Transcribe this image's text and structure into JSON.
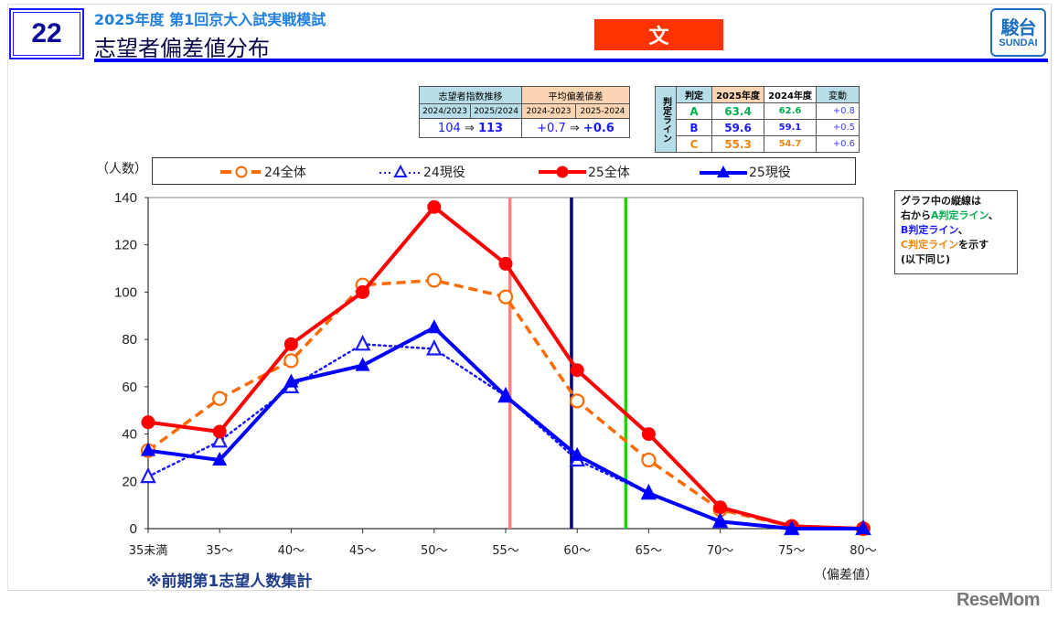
{
  "header": {
    "slide_number": "22",
    "subtitle": "2025年度 第1回京大入試実戦模試",
    "title": "志望者偏差値分布",
    "category_badge": "文",
    "logo": {
      "kanji": "駿台",
      "latin": "SUNDAI"
    }
  },
  "index_table": {
    "group1_header": "志望者指数推移",
    "group2_header": "平均偏差値差",
    "subheaders": [
      "2024/2023",
      "2025/2024",
      "2024-2023",
      "2025-2024"
    ],
    "index_from": "104",
    "index_to": "113",
    "diff_from": "+0.7",
    "diff_to": "+0.6",
    "arrow": "⇒"
  },
  "judgment_table": {
    "side_label": "判定ライン",
    "headers": [
      "判定",
      "2025年度",
      "2024年度",
      "変動"
    ],
    "rows": [
      {
        "grade": "A",
        "y2025": "63.4",
        "y2024": "62.6",
        "change": "+0.8",
        "color": "#00b050"
      },
      {
        "grade": "B",
        "y2025": "59.6",
        "y2024": "59.1",
        "change": "+0.5",
        "color": "#1a1aff"
      },
      {
        "grade": "C",
        "y2025": "55.3",
        "y2024": "54.7",
        "change": "+0.6",
        "color": "#f0860f"
      }
    ]
  },
  "legend": {
    "items": [
      {
        "label": "24全体",
        "color": "#ff6a00",
        "style": "dashed",
        "marker": "open-circle"
      },
      {
        "label": "24現役",
        "color": "#1a1aff",
        "style": "dotted",
        "marker": "open-triangle"
      },
      {
        "label": "25全体",
        "color": "#ff0000",
        "style": "solid",
        "marker": "filled-circle"
      },
      {
        "label": "25現役",
        "color": "#0000ff",
        "style": "solid",
        "marker": "filled-triangle"
      }
    ]
  },
  "axis": {
    "y_unit": "（人数）",
    "x_unit": "（偏差値）"
  },
  "note": {
    "line1": "グラフ中の縦線は",
    "line2_prefix": "右から",
    "line2_a": "A判定ライン",
    "line2_suffix": "、",
    "line3_b": "B判定ライン",
    "line3_suffix": "、",
    "line4_c": "C判定ライン",
    "line4_suffix": "を示す",
    "line5": "(以下同じ)"
  },
  "footnote": "※前期第1志望人数集計",
  "watermark": "ReseMom",
  "chart_data": {
    "type": "line",
    "title": "志望者偏差値分布",
    "xlabel": "（偏差値）",
    "ylabel": "（人数）",
    "categories": [
      "35未満",
      "35〜",
      "40〜",
      "45〜",
      "50〜",
      "55〜",
      "60〜",
      "65〜",
      "70〜",
      "75〜",
      "80〜"
    ],
    "ylim": [
      0,
      140
    ],
    "yticks": [
      0,
      20,
      40,
      60,
      80,
      100,
      120,
      140
    ],
    "grid": false,
    "legend_position": "top",
    "series": [
      {
        "name": "24全体",
        "color": "#ff6a00",
        "line": "dashed",
        "marker": "open-circle",
        "values": [
          33,
          55,
          71,
          103,
          105,
          98,
          54,
          29,
          8,
          1,
          0
        ]
      },
      {
        "name": "24現役",
        "color": "#1a1aff",
        "line": "dotted",
        "marker": "open-triangle",
        "values": [
          22,
          37,
          60,
          78,
          76,
          56,
          29,
          15,
          3,
          0,
          0
        ]
      },
      {
        "name": "25全体",
        "color": "#ff0000",
        "line": "solid",
        "marker": "filled-circle",
        "values": [
          45,
          41,
          78,
          100,
          136,
          112,
          67,
          40,
          9,
          1,
          0
        ]
      },
      {
        "name": "25現役",
        "color": "#0000ff",
        "line": "solid",
        "marker": "filled-triangle",
        "values": [
          33,
          29,
          62,
          69,
          85,
          56,
          31,
          15,
          3,
          0,
          0
        ]
      }
    ],
    "reference_lines": [
      {
        "label": "A判定ライン",
        "x": 63.4,
        "color": "#00e000"
      },
      {
        "label": "B判定ライン",
        "x": 59.6,
        "color": "#000080"
      },
      {
        "label": "C判定ライン",
        "x": 55.3,
        "color": "#ff8080"
      }
    ]
  }
}
